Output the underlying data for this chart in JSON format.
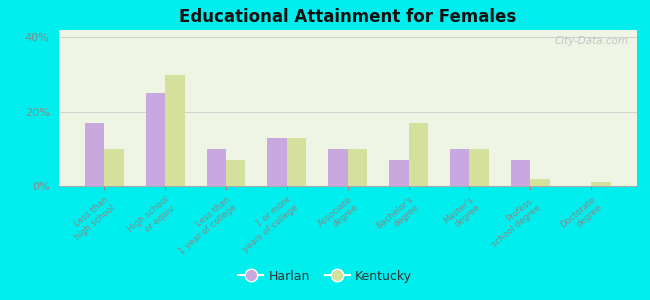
{
  "title": "Educational Attainment for Females",
  "categories": [
    "Less than\nhigh school",
    "High school\nor equiv.",
    "Less than\n1 year of college",
    "1 or more\nyears of college",
    "Associate\ndegree",
    "Bachelor's\ndegree",
    "Master's\ndegree",
    "Profess.\nschool degree",
    "Doctorate\ndegree"
  ],
  "harlan": [
    17,
    25,
    10,
    13,
    10,
    7,
    10,
    7,
    0
  ],
  "kentucky": [
    10,
    30,
    7,
    13,
    10,
    17,
    10,
    2,
    1
  ],
  "harlan_color": "#c9a8e0",
  "kentucky_color": "#d4e09b",
  "background_outer": "#00eeee",
  "background_inner_top": "#eaf5e0",
  "background_inner_bottom": "#f5f5e8",
  "ylim": [
    0,
    42
  ],
  "yticks": [
    0,
    20,
    40
  ],
  "ytick_labels": [
    "0%",
    "20%",
    "40%"
  ],
  "watermark": "City-Data.com",
  "legend_harlan": "Harlan",
  "legend_kentucky": "Kentucky",
  "figsize": [
    6.5,
    3.0
  ],
  "dpi": 100
}
